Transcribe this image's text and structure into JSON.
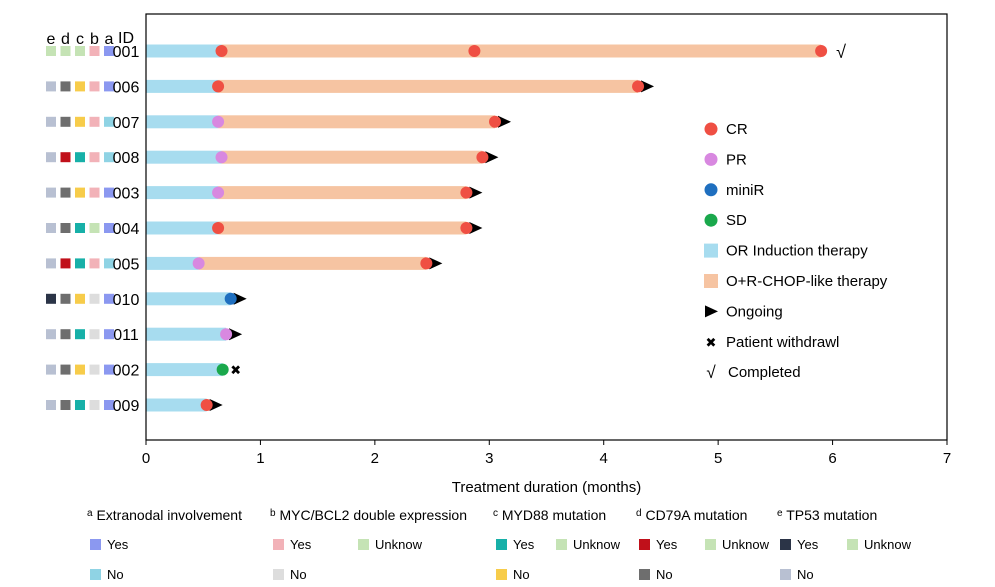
{
  "chart_data": {
    "type": "swimmer",
    "xlabel": "Treatment duration (months)",
    "xlim": [
      0,
      7
    ],
    "x_ticks": [
      "0",
      "1",
      "2",
      "3",
      "4",
      "5",
      "6",
      "7"
    ],
    "id_header": "ID",
    "column_headers": [
      "e",
      "d",
      "c",
      "b",
      "a"
    ],
    "colors": {
      "induction": "#a7dcef",
      "chop": "#f6c4a2",
      "CR": "#ef4f43",
      "PR": "#d888e0",
      "miniR": "#1f6fbf",
      "SD": "#1aa84c",
      "arrow": "#000000",
      "marker_colors": {
        "a_yes": "#8b98f0",
        "a_no": "#8fd3e4",
        "b_yes": "#f2b2b8",
        "b_no": "#dddddd",
        "c_yes": "#17b0a8",
        "c_no": "#f7cc4a",
        "d_yes": "#c0101a",
        "d_no": "#6e6e6e",
        "e_yes": "#2b3447",
        "e_no": "#b8c0d2",
        "unknown": "#c5e3b5"
      }
    },
    "patients": [
      {
        "id": "001",
        "markers": [
          "unknown",
          "unknown",
          "unknown",
          "b_yes",
          "a_yes"
        ],
        "induction_end": 0.66,
        "end": 5.9,
        "responses": [
          {
            "x": 0.66,
            "type": "CR"
          },
          {
            "x": 2.87,
            "type": "CR"
          },
          {
            "x": 5.9,
            "type": "CR"
          }
        ],
        "status": "completed"
      },
      {
        "id": "006",
        "markers": [
          "e_no",
          "d_no",
          "c_no",
          "b_yes",
          "a_yes"
        ],
        "induction_end": 0.63,
        "end": 4.3,
        "responses": [
          {
            "x": 0.63,
            "type": "CR"
          },
          {
            "x": 4.3,
            "type": "CR"
          }
        ],
        "status": "ongoing"
      },
      {
        "id": "007",
        "markers": [
          "e_no",
          "d_no",
          "c_no",
          "b_yes",
          "a_no"
        ],
        "induction_end": 0.63,
        "end": 3.05,
        "responses": [
          {
            "x": 0.63,
            "type": "PR"
          },
          {
            "x": 3.05,
            "type": "CR"
          }
        ],
        "status": "ongoing"
      },
      {
        "id": "008",
        "markers": [
          "e_no",
          "d_yes",
          "c_yes",
          "b_yes",
          "a_no"
        ],
        "induction_end": 0.66,
        "end": 2.94,
        "responses": [
          {
            "x": 0.66,
            "type": "PR"
          },
          {
            "x": 2.94,
            "type": "CR"
          }
        ],
        "status": "ongoing"
      },
      {
        "id": "003",
        "markers": [
          "e_no",
          "d_no",
          "c_no",
          "b_yes",
          "a_yes"
        ],
        "induction_end": 0.63,
        "end": 2.8,
        "responses": [
          {
            "x": 0.63,
            "type": "PR"
          },
          {
            "x": 2.8,
            "type": "CR"
          }
        ],
        "status": "ongoing"
      },
      {
        "id": "004",
        "markers": [
          "e_no",
          "d_no",
          "c_yes",
          "unknown",
          "a_yes"
        ],
        "induction_end": 0.63,
        "end": 2.8,
        "responses": [
          {
            "x": 0.63,
            "type": "CR"
          },
          {
            "x": 2.8,
            "type": "CR"
          }
        ],
        "status": "ongoing"
      },
      {
        "id": "005",
        "markers": [
          "e_no",
          "d_yes",
          "c_yes",
          "b_yes",
          "a_no"
        ],
        "induction_end": 0.46,
        "end": 2.45,
        "responses": [
          {
            "x": 0.46,
            "type": "PR"
          },
          {
            "x": 2.45,
            "type": "CR"
          }
        ],
        "status": "ongoing"
      },
      {
        "id": "010",
        "markers": [
          "e_yes",
          "d_no",
          "c_no",
          "b_no",
          "a_yes"
        ],
        "induction_end": 0.74,
        "end": 0.74,
        "responses": [
          {
            "x": 0.74,
            "type": "miniR"
          }
        ],
        "status": "ongoing"
      },
      {
        "id": "011",
        "markers": [
          "e_no",
          "d_no",
          "c_yes",
          "b_no",
          "a_yes"
        ],
        "induction_end": 0.7,
        "end": 0.7,
        "responses": [
          {
            "x": 0.7,
            "type": "PR"
          }
        ],
        "status": "ongoing"
      },
      {
        "id": "002",
        "markers": [
          "e_no",
          "d_no",
          "c_no",
          "b_no",
          "a_yes"
        ],
        "induction_end": 0.67,
        "end": 0.67,
        "responses": [
          {
            "x": 0.67,
            "type": "SD"
          }
        ],
        "status": "withdrawl"
      },
      {
        "id": "009",
        "markers": [
          "e_no",
          "d_no",
          "c_yes",
          "b_no",
          "a_yes"
        ],
        "induction_end": 0.53,
        "end": 0.53,
        "responses": [
          {
            "x": 0.53,
            "type": "CR"
          }
        ],
        "status": "ongoing"
      }
    ],
    "legend": [
      {
        "key": "CR",
        "label": "CR",
        "shape": "dot"
      },
      {
        "key": "PR",
        "label": "PR",
        "shape": "dot"
      },
      {
        "key": "miniR",
        "label": "miniR",
        "shape": "dot"
      },
      {
        "key": "SD",
        "label": "SD",
        "shape": "dot"
      },
      {
        "key": "induction",
        "label": "OR Induction therapy",
        "shape": "square"
      },
      {
        "key": "chop",
        "label": "O+R-CHOP-like therapy",
        "shape": "square"
      },
      {
        "key": "ongoing",
        "label": "Ongoing",
        "shape": "arrow"
      },
      {
        "key": "withdrawl",
        "label": "Patient withdrawl",
        "shape": "cross"
      },
      {
        "key": "completed",
        "label": "Completed",
        "shape": "check"
      }
    ],
    "completed_symbol": "√",
    "withdrawl_symbol": "✖",
    "footnotes": [
      {
        "title_sup": "a",
        "title": " Extranodal involvement",
        "items": [
          {
            "label": "Yes",
            "color_key": "a_yes"
          },
          {
            "label": "No",
            "color_key": "a_no"
          }
        ]
      },
      {
        "title_sup": "b",
        "title": " MYC/BCL2 double expression",
        "items": [
          {
            "label": "Yes",
            "color_key": "b_yes"
          },
          {
            "label": "No",
            "color_key": "b_no"
          },
          {
            "label": "Unknow",
            "color_key": "unknown"
          }
        ]
      },
      {
        "title_sup": "c",
        "title": " MYD88 mutation",
        "items": [
          {
            "label": "Yes",
            "color_key": "c_yes"
          },
          {
            "label": "No",
            "color_key": "c_no"
          },
          {
            "label": "Unknow",
            "color_key": "unknown"
          }
        ]
      },
      {
        "title_sup": "d",
        "title": " CD79A mutation",
        "items": [
          {
            "label": "Yes",
            "color_key": "d_yes"
          },
          {
            "label": "No",
            "color_key": "d_no"
          },
          {
            "label": "Unknow",
            "color_key": "unknown"
          }
        ]
      },
      {
        "title_sup": "e",
        "title": " TP53 mutation",
        "items": [
          {
            "label": "Yes",
            "color_key": "e_yes"
          },
          {
            "label": "No",
            "color_key": "e_no"
          },
          {
            "label": "Unknow",
            "color_key": "unknown"
          }
        ]
      }
    ]
  }
}
